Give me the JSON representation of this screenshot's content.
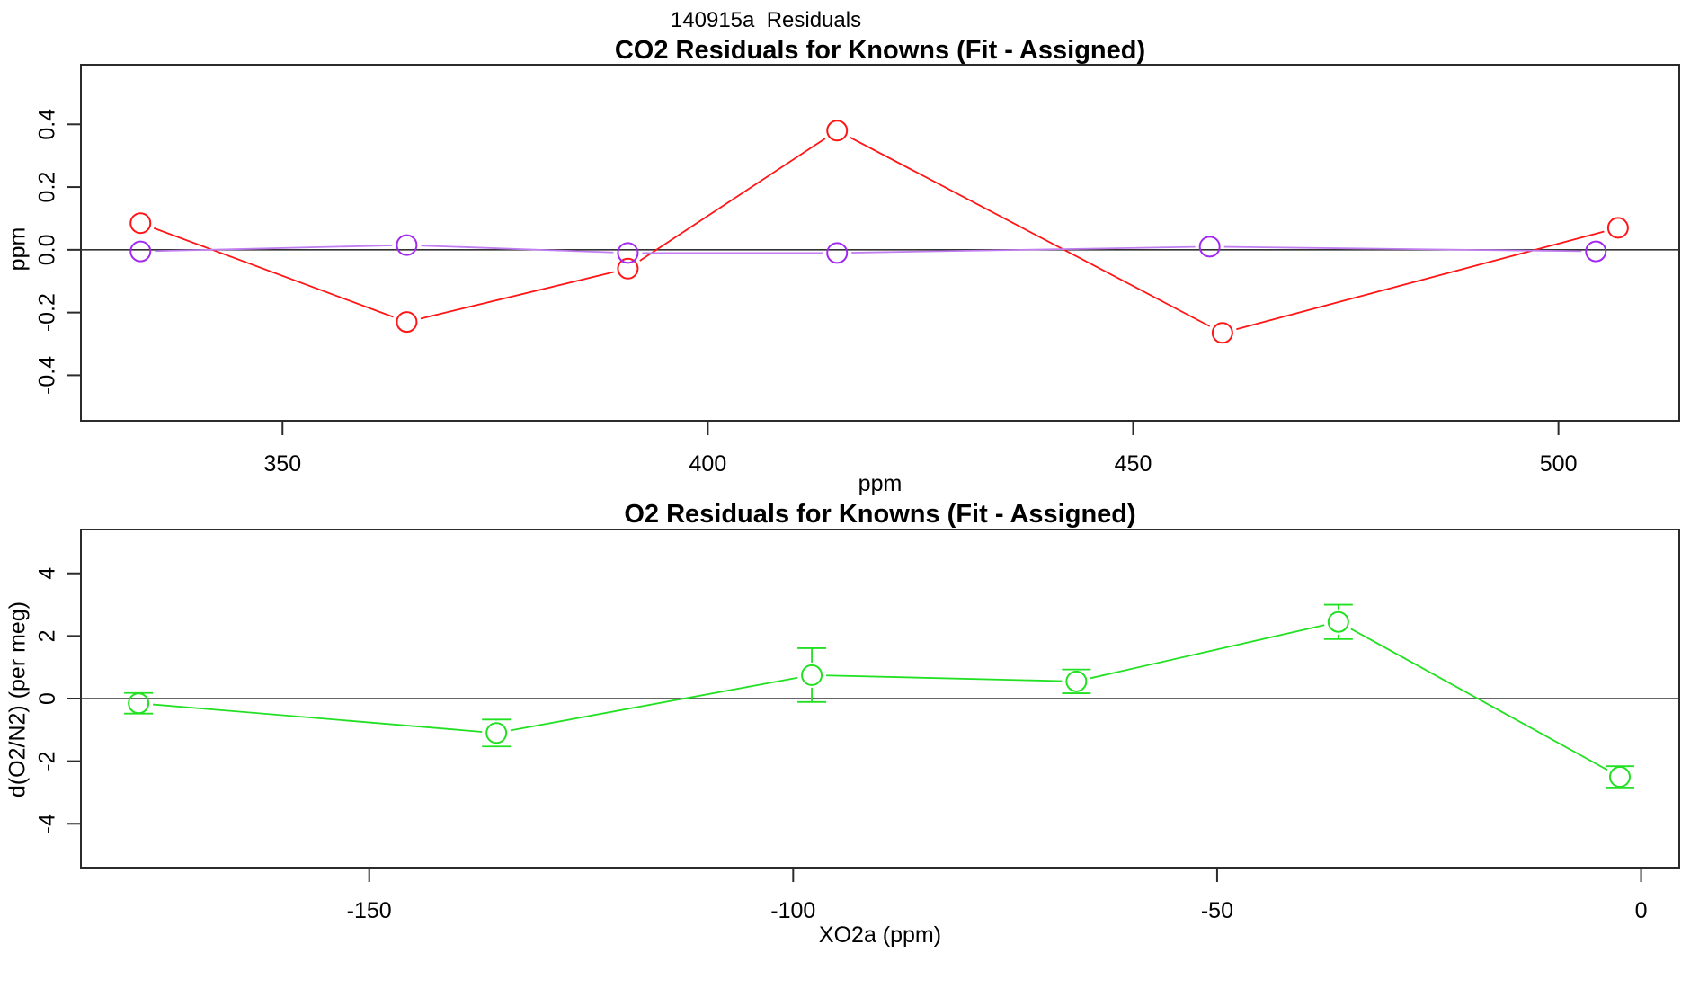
{
  "figure_title": "140915a  Residuals",
  "colors": {
    "red_series": "#FF1515",
    "purple_marker": "#A129F0",
    "purple_line": "#C17FF2",
    "green_series": "#22E022",
    "zero_line": "#333333",
    "frame": "#2B2B2B"
  },
  "chart_data": [
    {
      "type": "line",
      "title": "CO2 Residuals for Knowns (Fit - Assigned)",
      "xlabel": "ppm",
      "ylabel": "ppm",
      "xlim": [
        326.3,
        514.2
      ],
      "ylim": [
        -0.545,
        0.59
      ],
      "xticks": [
        350,
        400,
        450,
        500
      ],
      "xtick_labels": [
        "350",
        "400",
        "450",
        "500"
      ],
      "yticks": [
        -0.4,
        -0.2,
        0.0,
        0.2,
        0.4
      ],
      "ytick_labels": [
        "-0.4",
        "-0.2",
        "0.0",
        "0.2",
        "0.4"
      ],
      "hline": 0,
      "grid": false,
      "legend": "none",
      "marker": "open-circle",
      "series": [
        {
          "name": "co2-residuals-red-fit",
          "color": "#FF1515",
          "line_color": "#FF1515",
          "x": [
            333.3,
            364.6,
            390.6,
            415.2,
            460.5,
            507.0
          ],
          "y": [
            0.085,
            -0.23,
            -0.06,
            0.38,
            -0.265,
            0.07
          ]
        },
        {
          "name": "co2-residuals-purple-fit",
          "color": "#A129F0",
          "line_color": "#C17FF2",
          "x": [
            333.3,
            364.6,
            390.6,
            415.2,
            459.0,
            504.4
          ],
          "y": [
            -0.005,
            0.015,
            -0.01,
            -0.01,
            0.01,
            -0.005
          ]
        }
      ]
    },
    {
      "type": "line-errorbar",
      "title": "O2 Residuals for Knowns (Fit - Assigned)",
      "xlabel": "XO2a (ppm)",
      "ylabel": "d(O2/N2) (per meg)",
      "xlim": [
        -184.0,
        4.5
      ],
      "ylim": [
        -5.4,
        5.4
      ],
      "xticks": [
        -150,
        -100,
        -50,
        0
      ],
      "xtick_labels": [
        "-150",
        "-100",
        "-50",
        "0"
      ],
      "yticks": [
        -4,
        -2,
        0,
        2,
        4
      ],
      "ytick_labels": [
        "-4",
        "-2",
        "0",
        "2",
        "4"
      ],
      "hline": 0,
      "grid": false,
      "legend": "none",
      "marker": "open-circle",
      "series": [
        {
          "name": "o2-residuals-green-fit",
          "color": "#22E022",
          "line_color": "#22E022",
          "x": [
            -177.2,
            -135.0,
            -97.8,
            -66.6,
            -35.7,
            -2.5
          ],
          "y": [
            -0.15,
            -1.1,
            0.75,
            0.55,
            2.45,
            -2.5
          ],
          "err": [
            0.33,
            0.43,
            0.86,
            0.38,
            0.55,
            0.34
          ]
        }
      ]
    }
  ]
}
